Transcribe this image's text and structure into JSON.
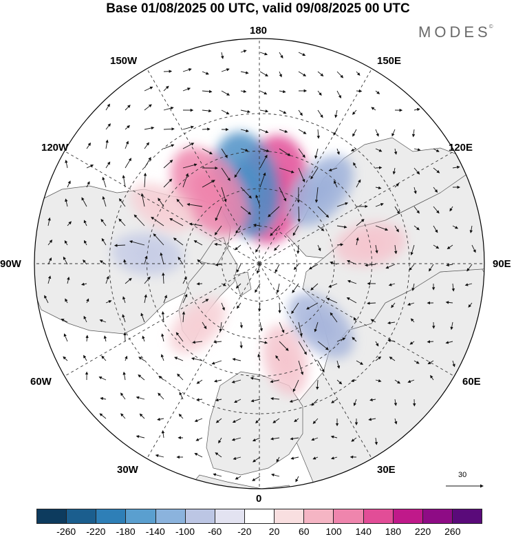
{
  "title": "Base 01/08/2025 00 UTC, valid 09/08/2025 00 UTC",
  "brand": "MODES",
  "brand_mark": "©",
  "longitude_labels": {
    "top": "180",
    "bottom": "0",
    "left": "90W",
    "right": "90E",
    "upper_left_1": "150W",
    "upper_left_2": "120W",
    "upper_right_1": "150E",
    "upper_right_2": "120E",
    "lower_left_1": "60W",
    "lower_left_2": "30W",
    "lower_right_1": "60E",
    "lower_right_2": "30E"
  },
  "reference_vector_label": "30",
  "colorbar": {
    "colors": [
      "#0d3b5e",
      "#1b5e8e",
      "#2e7fb7",
      "#5a9fcf",
      "#8bb3dd",
      "#bcc6e4",
      "#e3e3f1",
      "#ffffff",
      "#f9dfe0",
      "#f5b5c4",
      "#ef85ad",
      "#e24d97",
      "#c0198a",
      "#8e0b85",
      "#5a0a7a"
    ],
    "ticks": [
      "-260",
      "-220",
      "-180",
      "-140",
      "-100",
      "-60",
      "-20",
      "20",
      "60",
      "100",
      "140",
      "180",
      "220",
      "260"
    ]
  },
  "anomaly_centers": [
    {
      "lon_deg": 170,
      "lat_deg": 60,
      "value": 160,
      "color": "#e24d97"
    },
    {
      "lon_deg": -170,
      "lat_deg": 58,
      "value": -150,
      "color": "#4e8fc6"
    },
    {
      "lon_deg": -145,
      "lat_deg": 55,
      "value": 130,
      "color": "#ef85ad"
    },
    {
      "lon_deg": 140,
      "lat_deg": 52,
      "value": -80,
      "color": "#9eb1da"
    },
    {
      "lon_deg": 100,
      "lat_deg": 45,
      "value": 50,
      "color": "#f5c6cf"
    },
    {
      "lon_deg": 45,
      "lat_deg": 55,
      "value": -70,
      "color": "#a8b6dc"
    },
    {
      "lon_deg": 15,
      "lat_deg": 50,
      "value": 50,
      "color": "#f5c6cf"
    },
    {
      "lon_deg": -45,
      "lat_deg": 55,
      "value": 40,
      "color": "#f7d0d6"
    },
    {
      "lon_deg": -95,
      "lat_deg": 45,
      "value": -50,
      "color": "#c7cde6"
    },
    {
      "lon_deg": -120,
      "lat_deg": 45,
      "value": 40,
      "color": "#f7d0d6"
    }
  ]
}
